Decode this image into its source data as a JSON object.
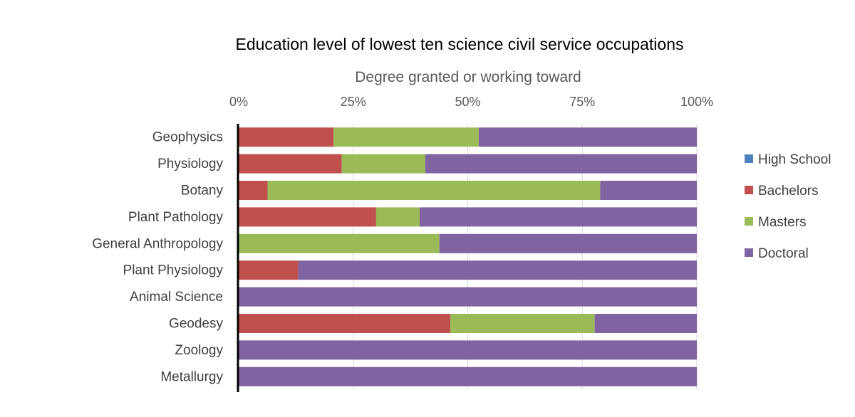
{
  "chart_data": {
    "type": "bar",
    "orientation": "horizontal",
    "stacked": "percent",
    "title": "Education level of lowest ten science civil service occupations",
    "xlabel": "Degree granted or working toward",
    "ylabel": "",
    "xlim": [
      0,
      100
    ],
    "x_ticks": [
      "0%",
      "25%",
      "50%",
      "75%",
      "100%"
    ],
    "x_axis_position": "top",
    "grid": {
      "vertical": true,
      "horizontal": false
    },
    "legend_position": "right",
    "categories": [
      "Geophysics",
      "Physiology",
      "Botany",
      "Plant Pathology",
      "General Anthropology",
      "Plant Physiology",
      "Animal Science",
      "Geodesy",
      "Zoology",
      "Metallurgy"
    ],
    "series": [
      {
        "name": "High School",
        "color": "#4F81BD",
        "values": [
          0,
          0,
          0,
          0,
          0,
          0,
          0,
          0,
          0,
          0
        ]
      },
      {
        "name": "Bachelors",
        "color": "#C0504D",
        "values": [
          20.7,
          22.5,
          6.3,
          30,
          0,
          13,
          0,
          46.2,
          0,
          0
        ]
      },
      {
        "name": "Masters",
        "color": "#9BBB59",
        "values": [
          31.7,
          18.2,
          72.6,
          9.5,
          43.8,
          0,
          0,
          31.5,
          0,
          0
        ]
      },
      {
        "name": "Doctoral",
        "color": "#8064A2",
        "values": [
          47.6,
          59.3,
          21.1,
          60.5,
          56.2,
          87,
          100,
          22.3,
          100,
          100
        ]
      }
    ]
  }
}
